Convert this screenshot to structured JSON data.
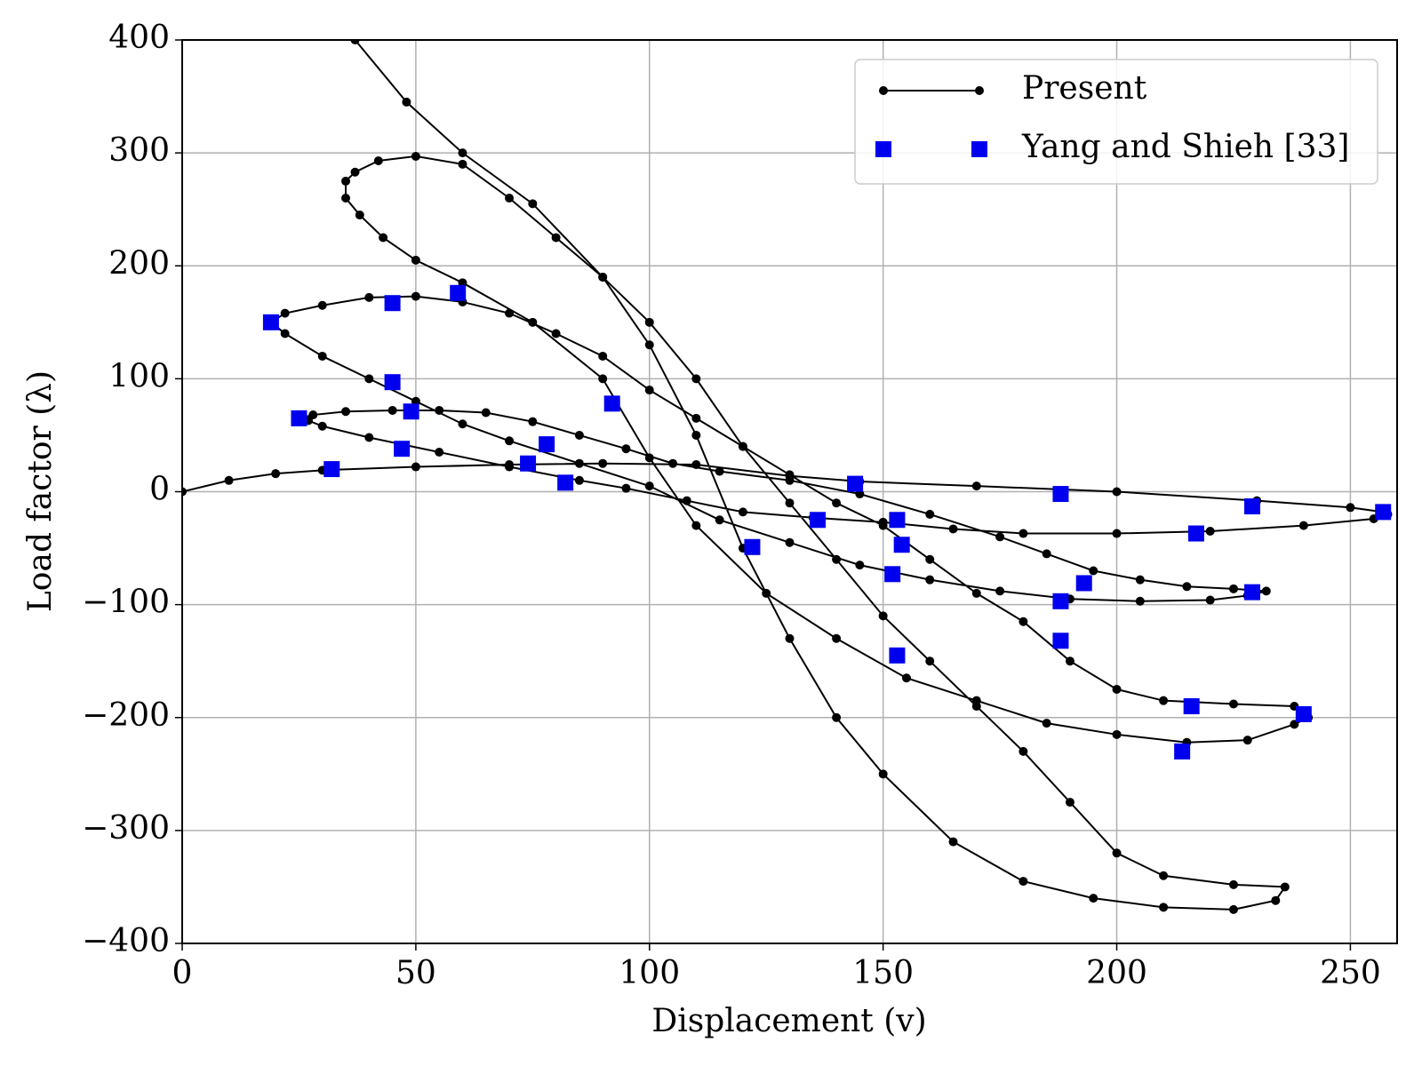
{
  "chart_data": {
    "type": "line",
    "x_label": "Displacement (v)",
    "y_label": "Load factor (λ)",
    "xlim": [
      0,
      260
    ],
    "ylim": [
      -400,
      400
    ],
    "xticks": [
      0,
      50,
      100,
      150,
      200,
      250
    ],
    "yticks": [
      {
        "value": -400,
        "label": "−400"
      },
      {
        "value": -300,
        "label": "−300"
      },
      {
        "value": -200,
        "label": "−200"
      },
      {
        "value": -100,
        "label": "−100"
      },
      0,
      100,
      200,
      300,
      400
    ],
    "grid": true,
    "legend": "upper right",
    "series": [
      {
        "name": "Present",
        "color": "#000000",
        "style": "line-dot",
        "x": [
          0,
          10,
          20,
          30,
          50,
          70,
          90,
          110,
          130,
          145,
          170,
          200,
          230,
          250,
          257,
          258,
          255,
          240,
          220,
          200,
          180,
          165,
          150,
          135,
          120,
          108,
          95,
          85,
          70,
          55,
          40,
          30,
          27,
          25,
          28,
          35,
          45,
          55,
          65,
          75,
          85,
          95,
          105,
          115,
          130,
          145,
          160,
          175,
          185,
          195,
          205,
          215,
          225,
          232,
          228,
          220,
          205,
          190,
          175,
          160,
          145,
          130,
          115,
          100,
          85,
          70,
          60,
          50,
          40,
          30,
          22,
          19,
          22,
          30,
          40,
          50,
          60,
          70,
          80,
          90,
          100,
          110,
          120,
          130,
          140,
          150,
          160,
          170,
          180,
          190,
          200,
          210,
          225,
          238,
          241,
          238,
          228,
          215,
          200,
          185,
          170,
          155,
          140,
          125,
          110,
          100,
          90,
          75,
          60,
          50,
          43,
          38,
          35,
          35,
          37,
          42,
          50,
          60,
          70,
          80,
          90,
          100,
          110,
          120,
          130,
          140,
          150,
          160,
          170,
          180,
          190,
          200,
          210,
          225,
          236,
          234,
          225,
          210,
          195,
          180,
          165,
          150,
          140,
          130,
          120,
          110,
          100,
          90,
          75,
          60,
          48,
          37
        ],
        "values": [
          0,
          10,
          16,
          19,
          22,
          24,
          25,
          24,
          14,
          9,
          5,
          0,
          -8,
          -14,
          -18,
          -20,
          -24,
          -30,
          -35,
          -37,
          -37,
          -33,
          -27,
          -23,
          -18,
          -8,
          3,
          10,
          22,
          35,
          48,
          58,
          63,
          65,
          68,
          71,
          72,
          72,
          70,
          62,
          50,
          38,
          25,
          18,
          10,
          -2,
          -20,
          -40,
          -55,
          -70,
          -78,
          -84,
          -86,
          -88,
          -92,
          -96,
          -97,
          -95,
          -88,
          -78,
          -65,
          -45,
          -25,
          5,
          25,
          45,
          60,
          80,
          100,
          120,
          140,
          150,
          158,
          165,
          172,
          173,
          168,
          158,
          140,
          120,
          90,
          65,
          40,
          15,
          -10,
          -30,
          -60,
          -90,
          -115,
          -150,
          -175,
          -185,
          -188,
          -190,
          -200,
          -206,
          -220,
          -222,
          -215,
          -205,
          -185,
          -165,
          -130,
          -90,
          -30,
          30,
          100,
          150,
          185,
          205,
          225,
          245,
          260,
          275,
          283,
          293,
          297,
          290,
          260,
          225,
          190,
          150,
          100,
          40,
          -10,
          -60,
          -110,
          -150,
          -190,
          -230,
          -275,
          -320,
          -340,
          -348,
          -350,
          -362,
          -370,
          -368,
          -360,
          -345,
          -310,
          -250,
          -200,
          -130,
          -50,
          50,
          130,
          190,
          255,
          300,
          345,
          400
        ]
      },
      {
        "name": "Yang and Shieh [33]",
        "color": "#0000ee",
        "style": "square",
        "x": [
          19,
          45,
          59,
          45,
          49,
          25,
          47,
          32,
          74,
          78,
          82,
          92,
          122,
          136,
          144,
          152,
          153,
          153,
          154,
          188,
          188,
          188,
          193,
          216,
          217,
          214,
          229,
          229,
          240,
          257
        ],
        "values": [
          150,
          167,
          176,
          97,
          71,
          65,
          38,
          20,
          25,
          42,
          8,
          78,
          -49,
          -25,
          7,
          -73,
          -25,
          -145,
          -47,
          -2,
          -97,
          -132,
          -81,
          -190,
          -37,
          -230,
          -13,
          -89,
          -197,
          -18
        ]
      }
    ]
  }
}
